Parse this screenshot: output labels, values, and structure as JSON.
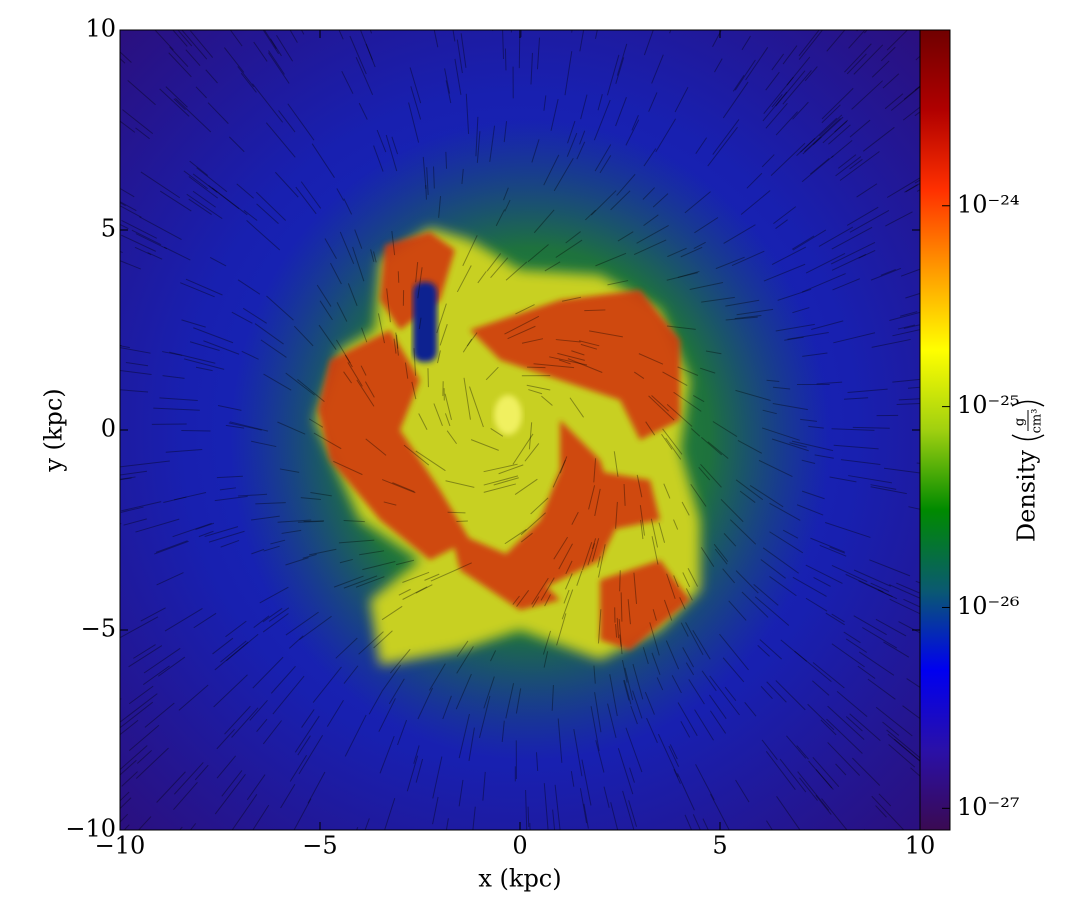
{
  "chart_data": {
    "type": "image",
    "xlabel": "x  (kpc)",
    "ylabel": "y  (kpc)",
    "xlim": [
      -10,
      10
    ],
    "ylim": [
      -10,
      10
    ],
    "xticks": [
      {
        "value": -10,
        "label": "−10"
      },
      {
        "value": -5,
        "label": "−5"
      },
      0,
      5,
      10
    ],
    "yticks": [
      {
        "value": -10,
        "label": "−10"
      },
      {
        "value": -5,
        "label": "−5"
      },
      0,
      5,
      10
    ],
    "colorbar": {
      "label": "Density",
      "unit_numerator": "g",
      "unit_denominator": "cm³",
      "log": true,
      "lim": [
        7.8e-28,
        7.5e-24
      ],
      "ticks": [
        {
          "value": 1e-27,
          "label": "10⁻²⁷"
        },
        {
          "value": 1e-26,
          "label": "10⁻²⁶"
        },
        {
          "value": 1e-25,
          "label": "10⁻²⁵"
        },
        {
          "value": 1e-24,
          "label": "10⁻²⁴"
        }
      ],
      "colormap": [
        "#3a0a52",
        "#2a10a8",
        "#0000f0",
        "#0a5a70",
        "#008a00",
        "#a0d010",
        "#ffff00",
        "#ff9a00",
        "#ff3000",
        "#b00000",
        "#700000"
      ]
    }
  }
}
